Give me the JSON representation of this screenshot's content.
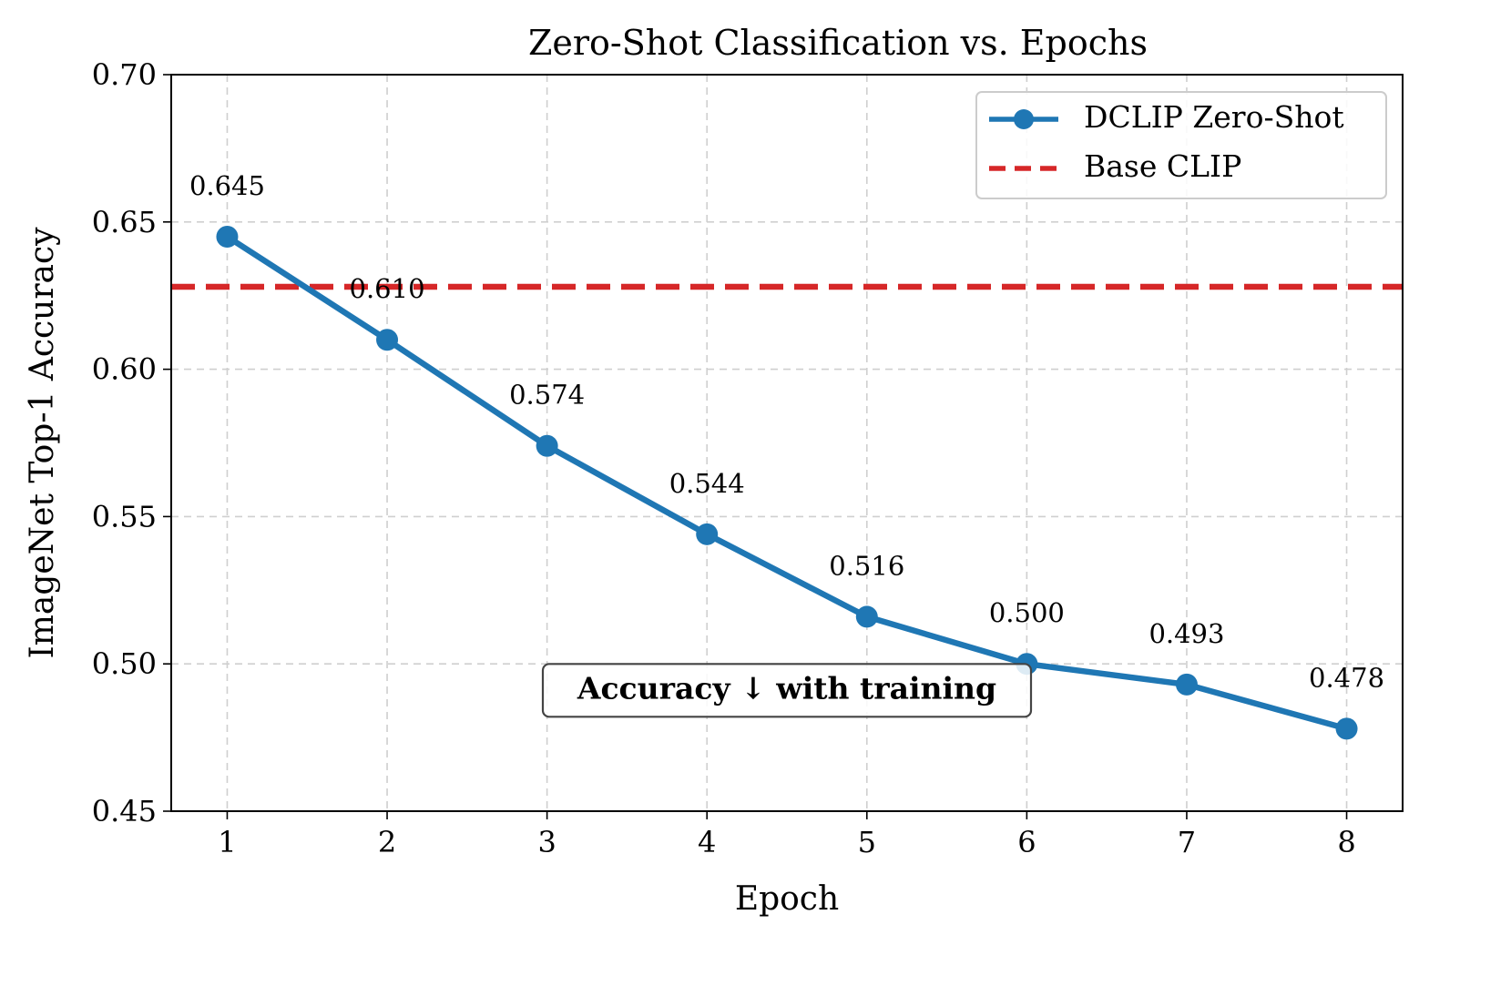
{
  "chart_data": {
    "type": "line",
    "title": "Zero-Shot Classification vs. Epochs",
    "xlabel": "Epoch",
    "ylabel": "ImageNet Top-1 Accuracy",
    "x": [
      1,
      2,
      3,
      4,
      5,
      6,
      7,
      8
    ],
    "xlim": [
      0.65,
      8.35
    ],
    "ylim": [
      0.45,
      0.7
    ],
    "yticks": [
      0.45,
      0.5,
      0.55,
      0.6,
      0.65,
      0.7
    ],
    "ytick_labels": [
      "0.45",
      "0.50",
      "0.55",
      "0.60",
      "0.65",
      "0.70"
    ],
    "xtick_labels": [
      "1",
      "2",
      "3",
      "4",
      "5",
      "6",
      "7",
      "8"
    ],
    "grid": true,
    "series": [
      {
        "name": "DCLIP Zero-Shot",
        "color": "#1f77b4",
        "style": "solid-marker",
        "values": [
          0.645,
          0.61,
          0.574,
          0.544,
          0.516,
          0.5,
          0.493,
          0.478
        ],
        "labels": [
          "0.645",
          "0.610",
          "0.574",
          "0.544",
          "0.516",
          "0.500",
          "0.493",
          "0.478"
        ]
      }
    ],
    "reference_lines": [
      {
        "name": "Base CLIP",
        "y": 0.628,
        "color": "#d62728",
        "style": "dashed"
      }
    ],
    "legend": {
      "placement": "top-right",
      "entries": [
        "DCLIP Zero-Shot",
        "Base CLIP"
      ]
    },
    "annotation": {
      "text": "Accuracy ↓ with training",
      "x": 4.5,
      "y": 0.491
    }
  }
}
